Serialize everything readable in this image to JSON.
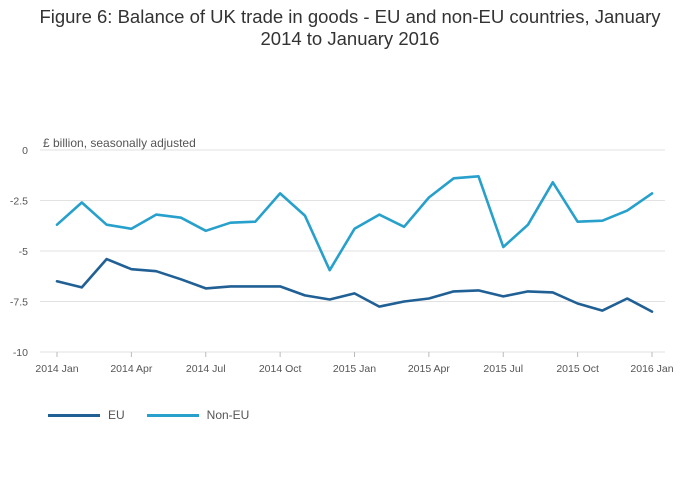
{
  "chart_data": {
    "type": "line",
    "title_line1": "Figure 6: Balance of UK trade in goods - EU and non-EU countries, January",
    "title_line2": "2014 to January 2016",
    "ylabel": "£ billion, seasonally adjusted",
    "xlabel": "",
    "ylim": [
      -10,
      0
    ],
    "yticks": [
      0,
      -2.5,
      -5,
      -7.5,
      -10
    ],
    "ytick_labels": [
      "0",
      "-2.5",
      "-5",
      "-7.5",
      "-10"
    ],
    "xtick_labels": [
      "2014 Jan",
      "2014 Apr",
      "2014 Jul",
      "2014 Oct",
      "2015 Jan",
      "2015 Apr",
      "2015 Jul",
      "2015 Oct",
      "2016 Jan"
    ],
    "xtick_indices": [
      0,
      3,
      6,
      9,
      12,
      15,
      18,
      21,
      24
    ],
    "x": [
      "2014 Jan",
      "2014 Feb",
      "2014 Mar",
      "2014 Apr",
      "2014 May",
      "2014 Jun",
      "2014 Jul",
      "2014 Aug",
      "2014 Sep",
      "2014 Oct",
      "2014 Nov",
      "2014 Dec",
      "2015 Jan",
      "2015 Feb",
      "2015 Mar",
      "2015 Apr",
      "2015 May",
      "2015 Jun",
      "2015 Jul",
      "2015 Aug",
      "2015 Sep",
      "2015 Oct",
      "2015 Nov",
      "2015 Dec",
      "2016 Jan"
    ],
    "series": [
      {
        "name": "EU",
        "color": "#206095",
        "values": [
          -6.5,
          -6.8,
          -5.4,
          -5.9,
          -6.0,
          -6.4,
          -6.85,
          -6.75,
          -6.75,
          -6.75,
          -7.2,
          -7.4,
          -7.1,
          -7.75,
          -7.5,
          -7.35,
          -7.0,
          -6.95,
          -7.25,
          -7.0,
          -7.05,
          -7.6,
          -7.95,
          -7.35,
          -8.0
        ]
      },
      {
        "name": "Non-EU",
        "color": "#27a0cc",
        "values": [
          -3.7,
          -2.6,
          -3.7,
          -3.9,
          -3.2,
          -3.35,
          -4.0,
          -3.6,
          -3.55,
          -2.15,
          -3.25,
          -5.95,
          -3.9,
          -3.2,
          -3.8,
          -2.35,
          -1.4,
          -1.3,
          -4.8,
          -3.7,
          -1.6,
          -3.55,
          -3.5,
          -3.0,
          -2.15
        ]
      }
    ],
    "legend_position": "bottom-left",
    "grid": true
  }
}
